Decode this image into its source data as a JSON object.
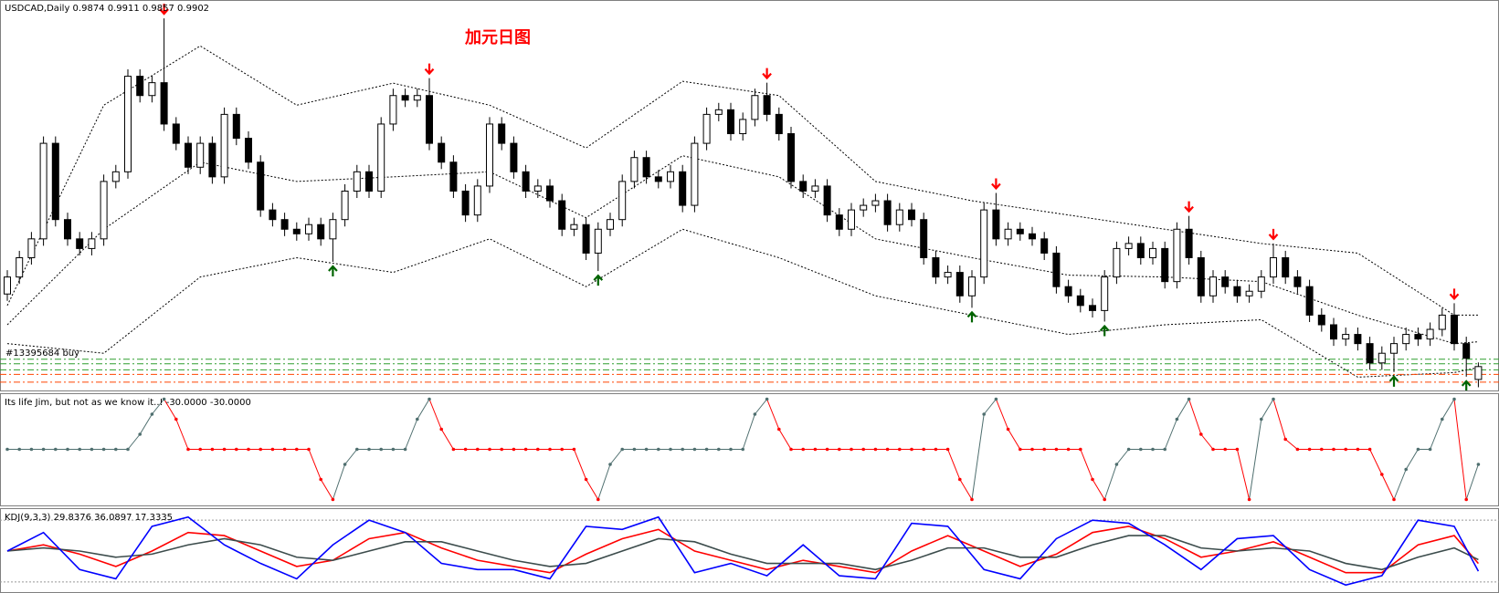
{
  "chart_data": [
    {
      "type": "candlestick",
      "title": "USDCAD,Daily  0.9874 0.9911 0.9857 0.9902",
      "annotation": "加元日图",
      "annotation_color": "#ff0000",
      "open": [
        1.006,
        1.0097,
        1.0139,
        1.018,
        1.0388,
        1.0222,
        1.018,
        1.0159,
        1.018,
        1.0305,
        1.0326,
        1.0534,
        1.0492,
        1.052,
        1.043,
        1.0388,
        1.0336,
        1.0388,
        1.0315,
        1.0451,
        1.0399,
        1.0347,
        1.0243,
        1.0222,
        1.0201,
        1.0191,
        1.0211,
        1.018,
        1.0222,
        1.0284,
        1.0326,
        1.0284,
        1.043,
        1.0492,
        1.0482,
        1.0492,
        1.0388,
        1.0347,
        1.0284,
        1.0232,
        1.0295,
        1.043,
        1.0388,
        1.0326,
        1.0284,
        1.0295,
        1.0263,
        1.0201,
        1.0211,
        1.0149,
        1.0201,
        1.0222,
        1.0305,
        1.0357,
        1.0315,
        1.0305,
        1.0326,
        1.0253,
        1.0388,
        1.0451,
        1.0461,
        1.0409,
        1.044,
        1.0492,
        1.0451,
        1.0409,
        1.0305,
        1.0284,
        1.0295,
        1.0232,
        1.0201,
        1.0243,
        1.0253,
        1.0263,
        1.0211,
        1.0243,
        1.0222,
        1.0139,
        1.0097,
        1.0107,
        1.0056,
        1.0097,
        1.0243,
        1.018,
        1.0201,
        1.0191,
        1.018,
        1.0149,
        1.0076,
        1.0056,
        1.0035,
        1.0024,
        1.0097,
        1.0159,
        1.017,
        1.0139,
        1.0159,
        1.0087,
        1.0201,
        1.0139,
        1.0056,
        1.0097,
        1.0076,
        1.0056,
        1.0066,
        1.0097,
        1.0139,
        1.0097,
        1.0076,
        1.0014,
        0.9993,
        0.9962,
        0.9972,
        0.9952,
        0.991,
        0.9931,
        0.9952,
        0.9972,
        0.9962,
        0.9983,
        1.0014,
        0.9952,
        0.9874
      ],
      "high": [
        1.0112,
        1.0154,
        1.0195,
        1.0403,
        1.0403,
        1.0237,
        1.0195,
        1.0195,
        1.032,
        1.0341,
        1.0549,
        1.0549,
        1.0535,
        1.066,
        1.0445,
        1.0403,
        1.0403,
        1.0403,
        1.0466,
        1.0466,
        1.0414,
        1.0362,
        1.0258,
        1.0237,
        1.0216,
        1.0226,
        1.0226,
        1.0237,
        1.0299,
        1.0341,
        1.0341,
        1.0445,
        1.0507,
        1.0507,
        1.0507,
        1.053,
        1.0403,
        1.0362,
        1.0299,
        1.031,
        1.0445,
        1.0445,
        1.0403,
        1.0341,
        1.031,
        1.031,
        1.0278,
        1.0226,
        1.0226,
        1.0216,
        1.0237,
        1.032,
        1.0372,
        1.0372,
        1.033,
        1.0341,
        1.0341,
        1.0403,
        1.0466,
        1.0476,
        1.0476,
        1.0455,
        1.0507,
        1.052,
        1.0466,
        1.0424,
        1.032,
        1.031,
        1.031,
        1.0247,
        1.0258,
        1.0268,
        1.0278,
        1.0278,
        1.0258,
        1.0258,
        1.0237,
        1.0154,
        1.0122,
        1.0122,
        1.0112,
        1.0258,
        1.028,
        1.0216,
        1.0216,
        1.0206,
        1.0195,
        1.0164,
        1.0091,
        1.0071,
        1.005,
        1.0112,
        1.0174,
        1.0185,
        1.0185,
        1.0174,
        1.0174,
        1.0216,
        1.023,
        1.0154,
        1.0112,
        1.0112,
        1.0091,
        1.0081,
        1.0112,
        1.017,
        1.0154,
        1.0112,
        1.0091,
        1.0029,
        1.0008,
        0.9987,
        0.9987,
        0.9967,
        0.9946,
        0.9967,
        0.9987,
        0.9987,
        0.9998,
        1.0029,
        1.004,
        0.9967,
        0.9911
      ],
      "low": [
        1.0045,
        1.0082,
        1.0124,
        1.0165,
        1.0207,
        1.0165,
        1.0144,
        1.0144,
        1.0165,
        1.029,
        1.0311,
        1.0477,
        1.0477,
        1.0415,
        1.0373,
        1.0321,
        1.0321,
        1.03,
        1.03,
        1.0384,
        1.0332,
        1.0228,
        1.0207,
        1.0186,
        1.0176,
        1.0176,
        1.0165,
        1.013,
        1.0207,
        1.0269,
        1.0269,
        1.0269,
        1.0415,
        1.0467,
        1.0467,
        1.0373,
        1.0332,
        1.0269,
        1.0217,
        1.0217,
        1.028,
        1.0373,
        1.0311,
        1.0269,
        1.0269,
        1.0248,
        1.0186,
        1.0186,
        1.0134,
        1.011,
        1.0186,
        1.0207,
        1.029,
        1.03,
        1.029,
        1.029,
        1.0238,
        1.0238,
        1.0373,
        1.0436,
        1.0394,
        1.0394,
        1.0425,
        1.0436,
        1.0394,
        1.029,
        1.0269,
        1.0269,
        1.0217,
        1.0186,
        1.0186,
        1.0228,
        1.0238,
        1.0196,
        1.0196,
        1.0207,
        1.0124,
        1.0082,
        1.0082,
        1.0041,
        1.003,
        1.0082,
        1.0165,
        1.0165,
        1.0176,
        1.0165,
        1.0134,
        1.0061,
        1.0041,
        1.002,
        1.0009,
        1.0,
        1.0082,
        1.0144,
        1.0124,
        1.0124,
        1.0072,
        1.0072,
        1.0124,
        1.0041,
        1.0041,
        1.0061,
        1.0041,
        1.0041,
        1.0051,
        1.0082,
        1.0082,
        1.0061,
        0.9999,
        0.9978,
        0.9947,
        0.9947,
        0.9937,
        0.9895,
        0.9895,
        0.989,
        0.9937,
        0.9947,
        0.9947,
        0.9968,
        0.9937,
        0.988,
        0.9857
      ],
      "close": [
        1.0097,
        1.0139,
        1.018,
        1.0388,
        1.0222,
        1.018,
        1.0159,
        1.018,
        1.0305,
        1.0326,
        1.0534,
        1.0492,
        1.052,
        1.043,
        1.0388,
        1.0336,
        1.0388,
        1.0315,
        1.0451,
        1.0399,
        1.0347,
        1.0243,
        1.0222,
        1.0201,
        1.0191,
        1.0211,
        1.018,
        1.0222,
        1.0284,
        1.0326,
        1.0284,
        1.043,
        1.0492,
        1.0482,
        1.0492,
        1.0388,
        1.0347,
        1.0284,
        1.0232,
        1.0295,
        1.043,
        1.0388,
        1.0326,
        1.0284,
        1.0295,
        1.0263,
        1.0201,
        1.0211,
        1.0149,
        1.0201,
        1.0222,
        1.0305,
        1.0357,
        1.0315,
        1.0305,
        1.0326,
        1.0253,
        1.0388,
        1.0451,
        1.0461,
        1.0409,
        1.044,
        1.0492,
        1.0451,
        1.0409,
        1.0305,
        1.0284,
        1.0295,
        1.0232,
        1.0201,
        1.0243,
        1.0253,
        1.0263,
        1.0211,
        1.0243,
        1.0222,
        1.0139,
        1.0097,
        1.0107,
        1.0056,
        1.0097,
        1.0243,
        1.018,
        1.0201,
        1.0191,
        1.018,
        1.0149,
        1.0076,
        1.0056,
        1.0035,
        1.0024,
        1.0097,
        1.0159,
        1.017,
        1.0139,
        1.0159,
        1.0087,
        1.0201,
        1.0139,
        1.0056,
        1.0097,
        1.0076,
        1.0056,
        1.0066,
        1.0097,
        1.0139,
        1.0097,
        1.0076,
        1.0014,
        0.9993,
        0.9962,
        0.9972,
        0.9952,
        0.991,
        0.9931,
        0.9952,
        0.9972,
        0.9962,
        0.9983,
        1.0014,
        0.9952,
        0.992,
        0.9902
      ],
      "up_color": "#ffffff",
      "down_color": "#000000",
      "ylim": [
        0.985,
        1.07
      ],
      "band_x": [
        0,
        8,
        16,
        24,
        32,
        40,
        48,
        56,
        64,
        72,
        80,
        88,
        96,
        104,
        112,
        120,
        122
      ],
      "bands": [
        {
          "color": "#000000",
          "values": [
            1.0035,
            1.0471,
            1.06,
            1.0471,
            1.0519,
            1.0471,
            1.0378,
            1.0523,
            1.0492,
            1.0305,
            1.0263,
            1.0232,
            1.0201,
            1.017,
            1.0149,
            1.0014,
            1.0014
          ]
        },
        {
          "color": "#000000",
          "values": [
            0.9993,
            1.0201,
            1.0347,
            1.0305,
            1.0315,
            1.0326,
            1.0226,
            1.0361,
            1.0315,
            1.018,
            1.0139,
            1.0101,
            1.0097,
            1.0087,
            1.0014,
            0.9952,
            0.9956
          ]
        },
        {
          "color": "#000000",
          "values": [
            0.9952,
            0.9931,
            1.0097,
            1.0139,
            1.0107,
            1.018,
            1.0076,
            1.0201,
            1.0139,
            1.0056,
            1.0014,
            0.9972,
            0.9993,
            1.0004,
            0.9879,
            0.9889,
            0.99
          ]
        }
      ],
      "sell_signals": [
        13,
        35,
        63,
        82,
        98,
        105,
        120
      ],
      "sell_color": "#ff0000",
      "buy_signals": [
        27,
        49,
        80,
        91,
        115,
        121
      ],
      "buy_color": "#006400",
      "order_label": "#13395684 buy",
      "levels": [
        {
          "value": 0.9918,
          "color": "#2e9e2e"
        },
        {
          "value": 0.9908,
          "color": "#2e9e2e"
        },
        {
          "value": 0.9895,
          "color": "#2e9e2e"
        },
        {
          "value": 0.9885,
          "color": "#ff4500"
        },
        {
          "value": 0.9868,
          "color": "#ff4500"
        }
      ]
    },
    {
      "type": "line",
      "title": "Its life Jim, but not as we know it..!  -30.0000 -30.0000",
      "values": [
        0,
        0,
        0,
        0,
        0,
        0,
        0,
        0,
        0,
        0,
        0,
        30,
        70,
        100,
        60,
        0,
        0,
        0,
        0,
        0,
        0,
        0,
        0,
        0,
        0,
        0,
        -60,
        -100,
        -30,
        0,
        0,
        0,
        0,
        0,
        60,
        100,
        40,
        0,
        0,
        0,
        0,
        0,
        0,
        0,
        0,
        0,
        0,
        0,
        -60,
        -100,
        -30,
        0,
        0,
        0,
        0,
        0,
        0,
        0,
        0,
        0,
        0,
        0,
        70,
        100,
        40,
        0,
        0,
        0,
        0,
        0,
        0,
        0,
        0,
        0,
        0,
        0,
        0,
        0,
        0,
        -60,
        -100,
        70,
        100,
        40,
        0,
        0,
        0,
        0,
        0,
        0,
        -60,
        -100,
        -30,
        0,
        0,
        0,
        0,
        60,
        100,
        30,
        0,
        0,
        0,
        -100,
        60,
        100,
        20,
        0,
        0,
        0,
        0,
        0,
        0,
        0,
        -50,
        -100,
        -40,
        0,
        0,
        60,
        100,
        -100,
        -30
      ],
      "up_color": "#4f6f6f",
      "down_color": "#ff0000",
      "ylim": [
        -110,
        110
      ]
    },
    {
      "type": "line",
      "title": "KDJ(9,3,3) 29.8376 36.0897 17.3335",
      "x": [
        0,
        3,
        6,
        9,
        12,
        15,
        18,
        21,
        24,
        27,
        30,
        33,
        36,
        39,
        42,
        45,
        48,
        51,
        54,
        57,
        60,
        63,
        66,
        69,
        72,
        75,
        78,
        81,
        84,
        87,
        90,
        93,
        96,
        99,
        102,
        105,
        108,
        111,
        114,
        117,
        120,
        122
      ],
      "series": [
        {
          "color": "#ff0000",
          "values": [
            50,
            60,
            45,
            25,
            50,
            80,
            75,
            50,
            25,
            35,
            70,
            80,
            55,
            35,
            25,
            15,
            45,
            70,
            85,
            50,
            35,
            20,
            35,
            25,
            15,
            50,
            75,
            50,
            25,
            45,
            80,
            90,
            70,
            40,
            50,
            65,
            40,
            15,
            15,
            60,
            75,
            29.8376
          ]
        },
        {
          "color": "#3c4c4c",
          "values": [
            50,
            55,
            50,
            40,
            45,
            60,
            70,
            60,
            40,
            35,
            50,
            65,
            65,
            50,
            35,
            25,
            30,
            50,
            70,
            65,
            45,
            30,
            30,
            30,
            20,
            35,
            55,
            55,
            40,
            40,
            60,
            75,
            75,
            55,
            50,
            55,
            50,
            30,
            20,
            40,
            55,
            36.0897
          ]
        },
        {
          "color": "#0000ff",
          "values": [
            50,
            80,
            20,
            5,
            90,
            105,
            60,
            30,
            5,
            60,
            100,
            80,
            30,
            20,
            20,
            5,
            90,
            85,
            105,
            15,
            30,
            10,
            60,
            10,
            5,
            95,
            90,
            20,
            5,
            70,
            100,
            95,
            60,
            20,
            70,
            75,
            20,
            -5,
            10,
            100,
            90,
            17.3335
          ]
        }
      ],
      "levels": [
        100,
        0
      ],
      "ylim": [
        -15,
        115
      ]
    }
  ]
}
